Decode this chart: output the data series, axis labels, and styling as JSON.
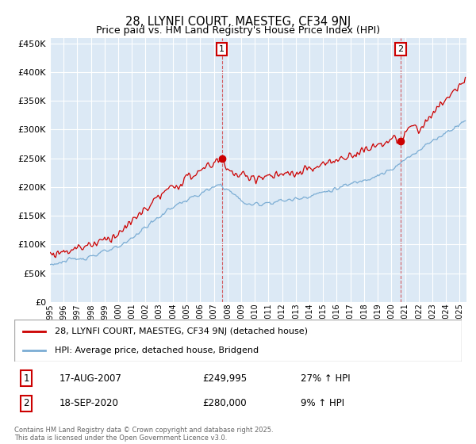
{
  "title": "28, LLYNFI COURT, MAESTEG, CF34 9NJ",
  "subtitle": "Price paid vs. HM Land Registry's House Price Index (HPI)",
  "legend_line1": "28, LLYNFI COURT, MAESTEG, CF34 9NJ (detached house)",
  "legend_line2": "HPI: Average price, detached house, Bridgend",
  "annotation1_date": "17-AUG-2007",
  "annotation1_price": "£249,995",
  "annotation1_hpi": "27% ↑ HPI",
  "annotation2_date": "18-SEP-2020",
  "annotation2_price": "£280,000",
  "annotation2_hpi": "9% ↑ HPI",
  "footer": "Contains HM Land Registry data © Crown copyright and database right 2025.\nThis data is licensed under the Open Government Licence v3.0.",
  "red_color": "#cc0000",
  "blue_color": "#7badd4",
  "background_color": "#dce9f5",
  "ylim": [
    0,
    460000
  ],
  "yticks": [
    0,
    50000,
    100000,
    150000,
    200000,
    250000,
    300000,
    350000,
    400000,
    450000
  ],
  "sale1_t": 2007.583,
  "sale1_price": 249995,
  "sale2_t": 2020.667,
  "sale2_price": 280000
}
